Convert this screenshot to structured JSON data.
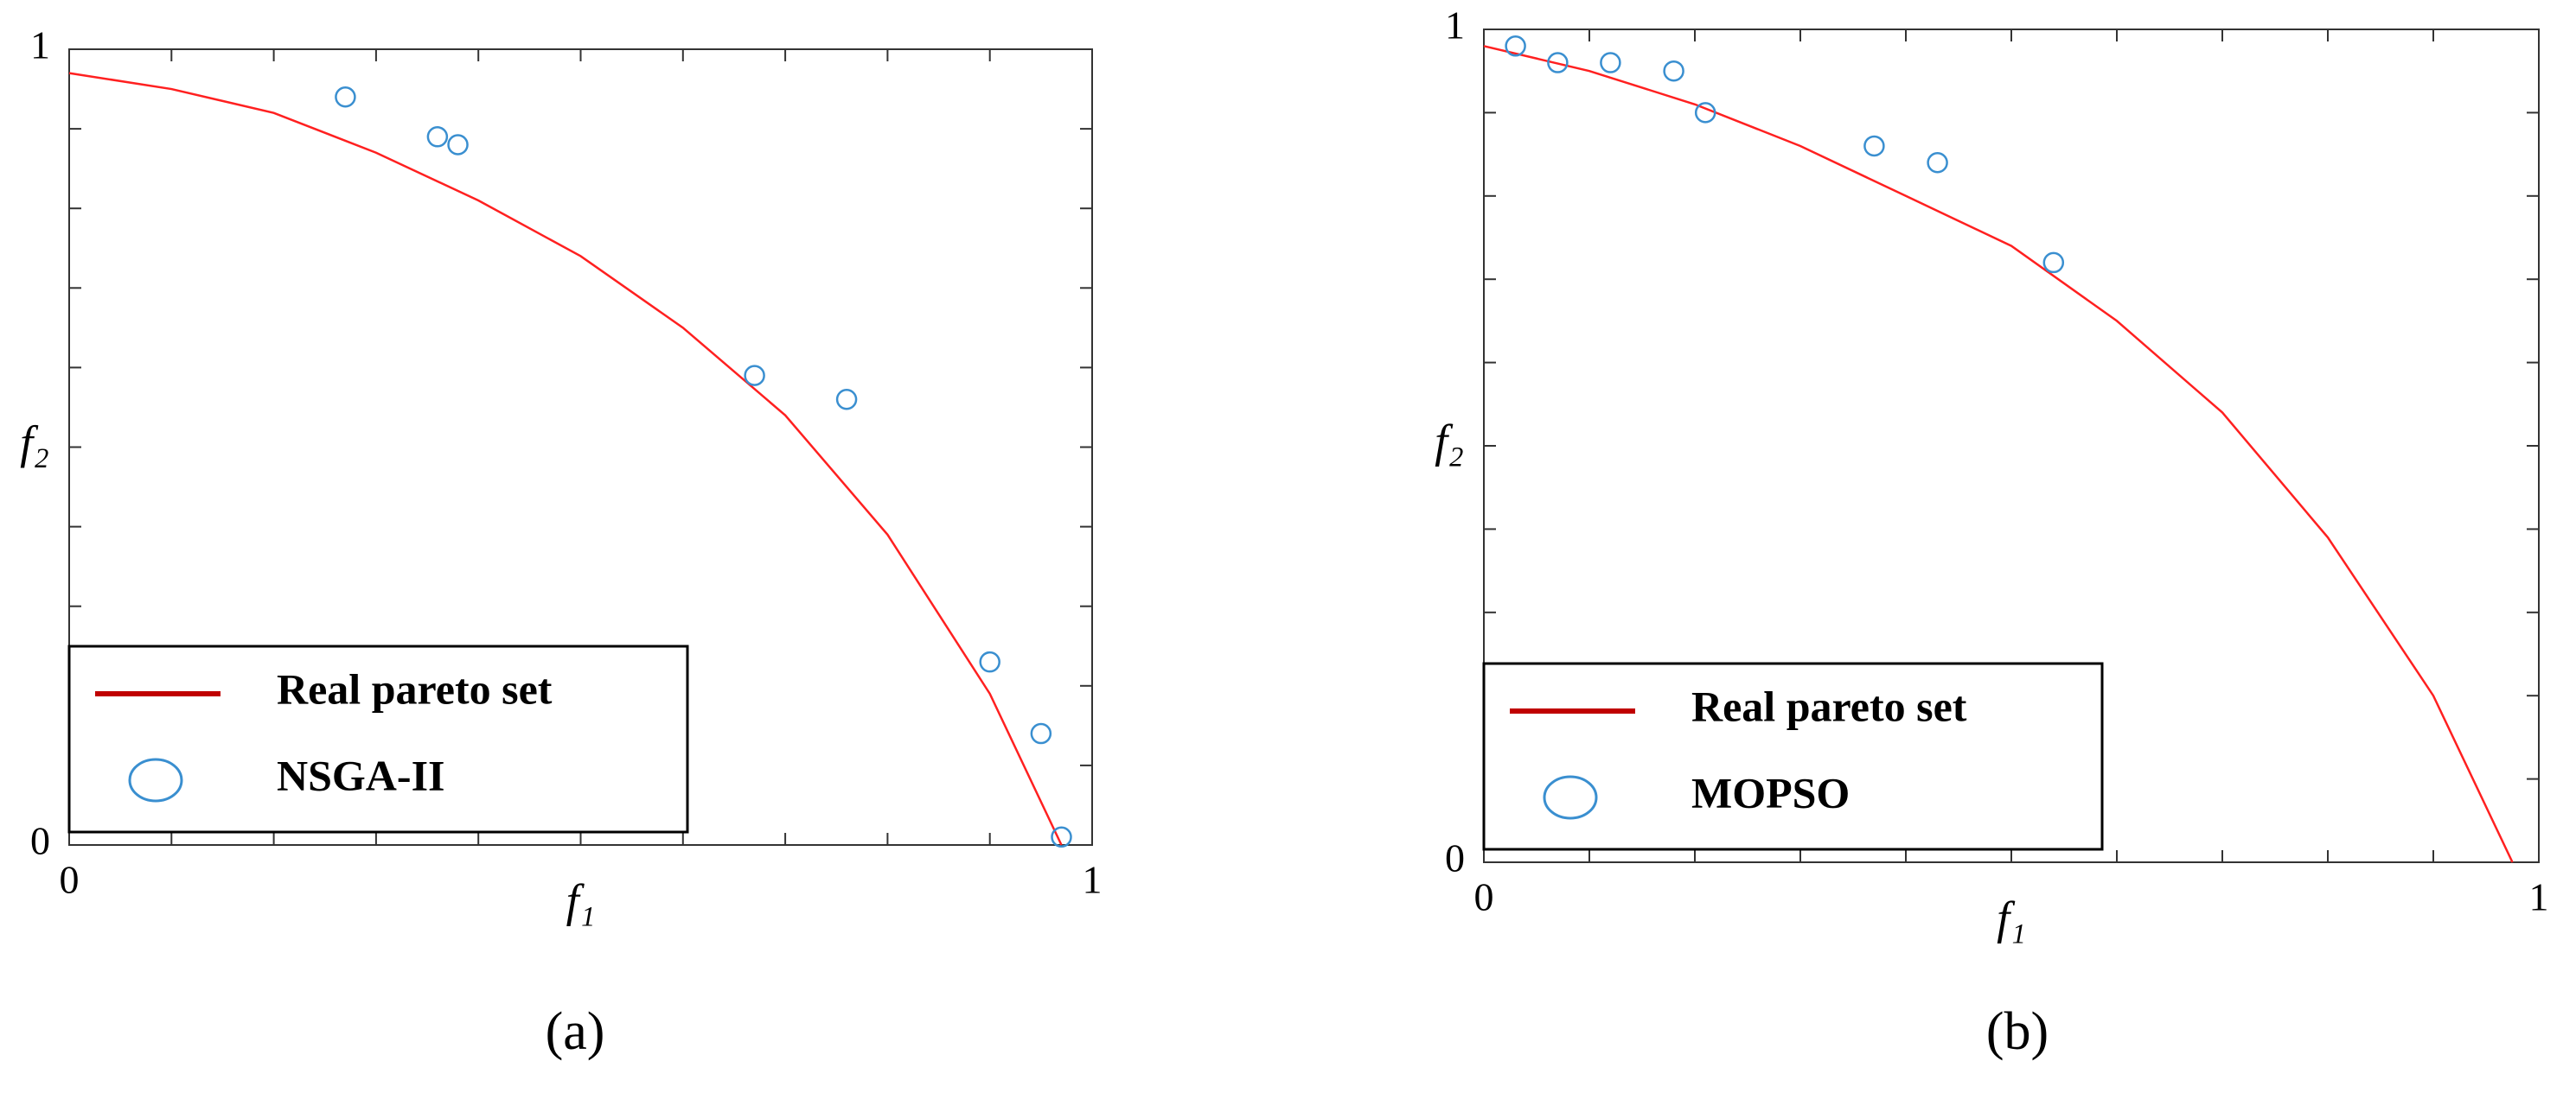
{
  "chart_data": [
    {
      "type": "scatter",
      "caption": "(a)",
      "xlabel": "f₁",
      "ylabel": "f₂",
      "xlim": [
        0,
        1
      ],
      "ylim": [
        0,
        1
      ],
      "xticks": [
        0,
        1
      ],
      "yticks": [
        0,
        1
      ],
      "legend": "lower left",
      "series": [
        {
          "name": "Real pareto set",
          "type": "line",
          "color": "#ff2020",
          "x": [
            0,
            0.1,
            0.2,
            0.3,
            0.4,
            0.5,
            0.6,
            0.7,
            0.8,
            0.9,
            0.97
          ],
          "values": [
            0.97,
            0.95,
            0.92,
            0.87,
            0.81,
            0.74,
            0.65,
            0.54,
            0.39,
            0.19,
            0
          ]
        },
        {
          "name": "NSGA-II",
          "type": "scatter",
          "color": "#3a8fd0",
          "x": [
            0.27,
            0.36,
            0.38,
            0.67,
            0.76,
            0.9,
            0.95,
            0.97
          ],
          "values": [
            0.94,
            0.89,
            0.88,
            0.59,
            0.56,
            0.23,
            0.14,
            0.01
          ]
        }
      ]
    },
    {
      "type": "scatter",
      "caption": "(b)",
      "xlabel": "f₁",
      "ylabel": "f₂",
      "xlim": [
        0,
        1
      ],
      "ylim": [
        0,
        1
      ],
      "xticks": [
        0,
        1
      ],
      "yticks": [
        0,
        1
      ],
      "legend": "lower left",
      "series": [
        {
          "name": "Real pareto set",
          "type": "line",
          "color": "#ff2020",
          "x": [
            0,
            0.1,
            0.2,
            0.3,
            0.4,
            0.5,
            0.6,
            0.7,
            0.8,
            0.9,
            0.975
          ],
          "values": [
            0.98,
            0.95,
            0.91,
            0.86,
            0.8,
            0.74,
            0.65,
            0.54,
            0.39,
            0.2,
            0
          ]
        },
        {
          "name": "MOPSO",
          "type": "scatter",
          "color": "#3a8fd0",
          "x": [
            0.03,
            0.07,
            0.12,
            0.18,
            0.21,
            0.37,
            0.43,
            0.54
          ],
          "values": [
            0.98,
            0.96,
            0.96,
            0.95,
            0.9,
            0.86,
            0.84,
            0.72
          ]
        }
      ]
    }
  ]
}
